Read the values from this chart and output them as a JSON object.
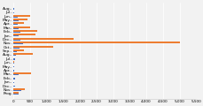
{
  "categories": [
    "Aug..",
    "Jul..",
    "Jun..",
    "May..",
    "Apr..",
    "Mar..",
    "Feb..",
    "Jan..",
    "Dec..",
    "Nov..",
    "Oct..",
    "Sep..",
    "Aug..",
    "Jul..",
    "Jun..",
    "May..",
    "Apr..",
    "Mar..",
    "Feb..",
    "Jan..",
    "Dec..",
    "Nov..",
    "Prog."
  ],
  "blue_vals": [
    30,
    20,
    130,
    150,
    120,
    160,
    200,
    150,
    200,
    280,
    170,
    100,
    70,
    40,
    18,
    15,
    15,
    160,
    40,
    20,
    40,
    240,
    160
  ],
  "orange_vals": [
    0,
    0,
    500,
    430,
    320,
    490,
    720,
    670,
    1800,
    5000,
    1200,
    310,
    580,
    0,
    15,
    0,
    0,
    520,
    0,
    0,
    0,
    330,
    160
  ],
  "color_blue": "#4472c4",
  "color_orange": "#ed7d31",
  "color_light_blue": "#9dc3e6",
  "bg_color": "#f2f2f2",
  "xlim_max": 5500,
  "xtick_vals": [
    0,
    500,
    1000,
    1500,
    2000,
    2500,
    3000,
    3500,
    4000,
    4500,
    5000,
    5500
  ],
  "xtick_labels": [
    "0",
    "500",
    "1,000",
    "1,500",
    "2,000",
    "2,500",
    "3,000",
    "3,500",
    "4,000",
    "4,500",
    "5,000",
    "5,500"
  ],
  "bar_height": 0.38,
  "bar_gap": 0.4,
  "label_fontsize": 3.2,
  "tick_fontsize": 3.0,
  "grid_color": "#ffffff",
  "spine_color": "#cccccc"
}
